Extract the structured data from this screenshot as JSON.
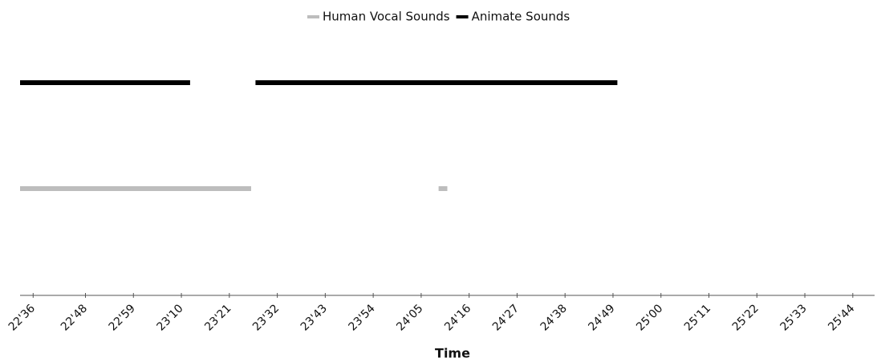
{
  "chart_data": {
    "type": "timeline",
    "x_label": "Time",
    "xlim": [
      1353,
      1549
    ],
    "xticks": [
      {
        "value": 1356,
        "label": "22'36"
      },
      {
        "value": 1368,
        "label": "22'48"
      },
      {
        "value": 1379,
        "label": "22'59"
      },
      {
        "value": 1390,
        "label": "23'10"
      },
      {
        "value": 1401,
        "label": "23'21"
      },
      {
        "value": 1412,
        "label": "23'32"
      },
      {
        "value": 1423,
        "label": "23'43"
      },
      {
        "value": 1434,
        "label": "23'54"
      },
      {
        "value": 1445,
        "label": "24'05"
      },
      {
        "value": 1456,
        "label": "24'16"
      },
      {
        "value": 1467,
        "label": "24'27"
      },
      {
        "value": 1478,
        "label": "24'38"
      },
      {
        "value": 1489,
        "label": "24'49"
      },
      {
        "value": 1500,
        "label": "25'00"
      },
      {
        "value": 1511,
        "label": "25'11"
      },
      {
        "value": 1522,
        "label": "25'22"
      },
      {
        "value": 1533,
        "label": "25'33"
      },
      {
        "value": 1544,
        "label": "25'44"
      }
    ],
    "series": [
      {
        "name": "Human Vocal Sounds",
        "color": "#bdbdbd",
        "segments": [
          [
            1353,
            1406
          ],
          [
            1449,
            1451
          ]
        ]
      },
      {
        "name": "Animate Sounds",
        "color": "#000000",
        "segments": [
          [
            1353,
            1392
          ],
          [
            1407,
            1490
          ]
        ]
      }
    ]
  }
}
